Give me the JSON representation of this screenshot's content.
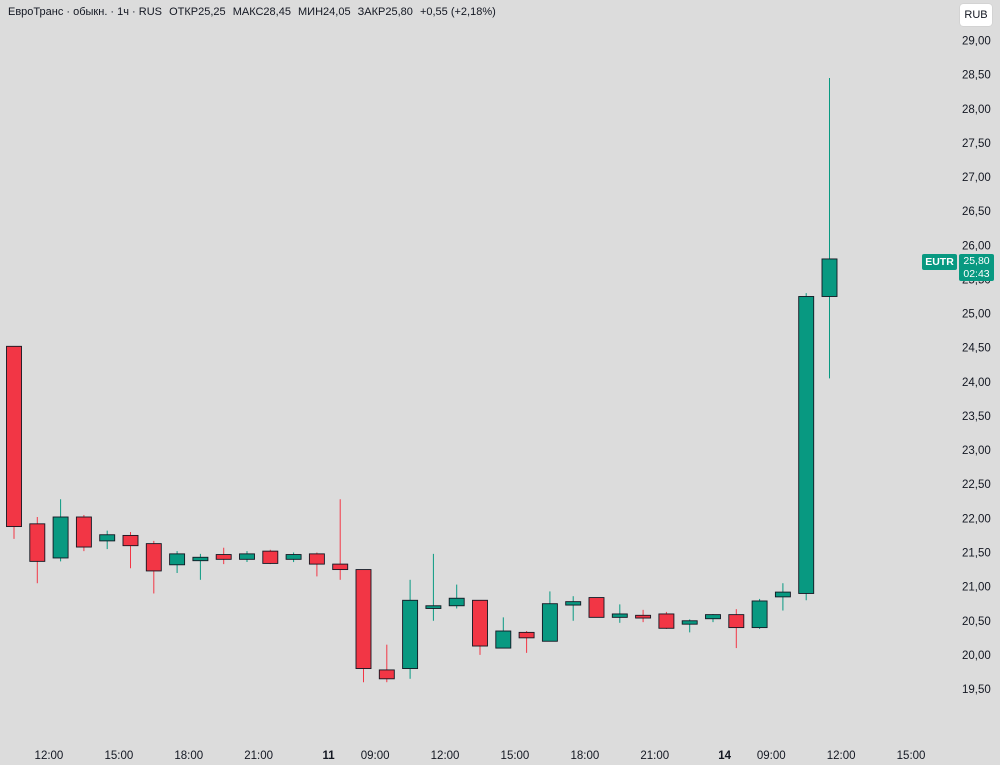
{
  "legend": {
    "name": "ЕвроТранс · обыкн. · 1ч · RUS",
    "open_label": "ОТКР",
    "open": "25,25",
    "high_label": "МАКС",
    "high": "28,45",
    "low_label": "МИН",
    "low": "24,05",
    "close_label": "ЗАКР",
    "close": "25,80",
    "change": "+0,55 (+2,18%)"
  },
  "currency": "RUB",
  "price_tag": {
    "symbol": "EUTR",
    "price": "25,80",
    "countdown": "02:43"
  },
  "colors": {
    "up": "#089981",
    "down": "#f23645",
    "background": "#dcdcdc"
  },
  "chart_data": {
    "type": "candlestick",
    "ylim": [
      18.9,
      29.3
    ],
    "y_ticks": [
      "19,50",
      "20,00",
      "20,50",
      "21,00",
      "21,50",
      "22,00",
      "22,50",
      "23,00",
      "23,50",
      "24,00",
      "24,50",
      "25,00",
      "25,50",
      "26,00",
      "26,50",
      "27,00",
      "27,50",
      "28,00",
      "28,50",
      "29,00"
    ],
    "y_tick_values": [
      19.5,
      20.0,
      20.5,
      21.0,
      21.5,
      22.0,
      22.5,
      23.0,
      23.5,
      24.0,
      24.5,
      25.0,
      25.5,
      26.0,
      26.5,
      27.0,
      27.5,
      28.0,
      28.5,
      29.0
    ],
    "x_ticks": [
      {
        "label": "12:00",
        "index": 1.5,
        "bold": false
      },
      {
        "label": "15:00",
        "index": 4.5,
        "bold": false
      },
      {
        "label": "18:00",
        "index": 7.5,
        "bold": false
      },
      {
        "label": "21:00",
        "index": 10.5,
        "bold": false
      },
      {
        "label": "11",
        "index": 13.5,
        "bold": true
      },
      {
        "label": "09:00",
        "index": 15.5,
        "bold": false
      },
      {
        "label": "12:00",
        "index": 18.5,
        "bold": false
      },
      {
        "label": "15:00",
        "index": 21.5,
        "bold": false
      },
      {
        "label": "18:00",
        "index": 24.5,
        "bold": false
      },
      {
        "label": "21:00",
        "index": 27.5,
        "bold": false
      },
      {
        "label": "14",
        "index": 30.5,
        "bold": true
      },
      {
        "label": "09:00",
        "index": 32.5,
        "bold": false
      },
      {
        "label": "12:00",
        "index": 35.5,
        "bold": false
      },
      {
        "label": "15:00",
        "index": 38.5,
        "bold": false
      }
    ],
    "candles": [
      {
        "o": 24.52,
        "h": 24.52,
        "l": 21.7,
        "c": 21.88
      },
      {
        "o": 21.92,
        "h": 22.02,
        "l": 21.05,
        "c": 21.37
      },
      {
        "o": 21.42,
        "h": 22.28,
        "l": 21.37,
        "c": 22.02
      },
      {
        "o": 22.02,
        "h": 22.05,
        "l": 21.52,
        "c": 21.58
      },
      {
        "o": 21.67,
        "h": 21.82,
        "l": 21.55,
        "c": 21.76
      },
      {
        "o": 21.75,
        "h": 21.8,
        "l": 21.27,
        "c": 21.6
      },
      {
        "o": 21.63,
        "h": 21.67,
        "l": 20.9,
        "c": 21.23
      },
      {
        "o": 21.32,
        "h": 21.52,
        "l": 21.2,
        "c": 21.48
      },
      {
        "o": 21.38,
        "h": 21.48,
        "l": 21.1,
        "c": 21.43
      },
      {
        "o": 21.47,
        "h": 21.57,
        "l": 21.33,
        "c": 21.4
      },
      {
        "o": 21.4,
        "h": 21.52,
        "l": 21.36,
        "c": 21.48
      },
      {
        "o": 21.52,
        "h": 21.54,
        "l": 21.33,
        "c": 21.34
      },
      {
        "o": 21.4,
        "h": 21.5,
        "l": 21.36,
        "c": 21.47
      },
      {
        "o": 21.48,
        "h": 21.5,
        "l": 21.15,
        "c": 21.33
      },
      {
        "o": 21.33,
        "h": 22.28,
        "l": 21.1,
        "c": 21.25
      },
      {
        "o": 21.25,
        "h": 21.25,
        "l": 19.6,
        "c": 19.8
      },
      {
        "o": 19.78,
        "h": 20.15,
        "l": 19.6,
        "c": 19.65
      },
      {
        "o": 19.8,
        "h": 21.1,
        "l": 19.65,
        "c": 20.8
      },
      {
        "o": 20.68,
        "h": 21.48,
        "l": 20.5,
        "c": 20.72
      },
      {
        "o": 20.72,
        "h": 21.03,
        "l": 20.68,
        "c": 20.83
      },
      {
        "o": 20.8,
        "h": 20.8,
        "l": 20.0,
        "c": 20.13
      },
      {
        "o": 20.1,
        "h": 20.55,
        "l": 20.1,
        "c": 20.35
      },
      {
        "o": 20.33,
        "h": 20.35,
        "l": 20.03,
        "c": 20.25
      },
      {
        "o": 20.2,
        "h": 20.93,
        "l": 20.2,
        "c": 20.75
      },
      {
        "o": 20.73,
        "h": 20.86,
        "l": 20.5,
        "c": 20.78
      },
      {
        "o": 20.84,
        "h": 20.84,
        "l": 20.55,
        "c": 20.55
      },
      {
        "o": 20.55,
        "h": 20.74,
        "l": 20.47,
        "c": 20.6
      },
      {
        "o": 20.58,
        "h": 20.66,
        "l": 20.48,
        "c": 20.54
      },
      {
        "o": 20.6,
        "h": 20.63,
        "l": 20.38,
        "c": 20.39
      },
      {
        "o": 20.45,
        "h": 20.52,
        "l": 20.33,
        "c": 20.5
      },
      {
        "o": 20.53,
        "h": 20.6,
        "l": 20.48,
        "c": 20.59
      },
      {
        "o": 20.59,
        "h": 20.67,
        "l": 20.1,
        "c": 20.4
      },
      {
        "o": 20.4,
        "h": 20.82,
        "l": 20.38,
        "c": 20.79
      },
      {
        "o": 20.85,
        "h": 21.05,
        "l": 20.65,
        "c": 20.92
      },
      {
        "o": 20.9,
        "h": 25.3,
        "l": 20.8,
        "c": 25.25
      },
      {
        "o": 25.25,
        "h": 28.45,
        "l": 24.05,
        "c": 25.8
      }
    ]
  }
}
